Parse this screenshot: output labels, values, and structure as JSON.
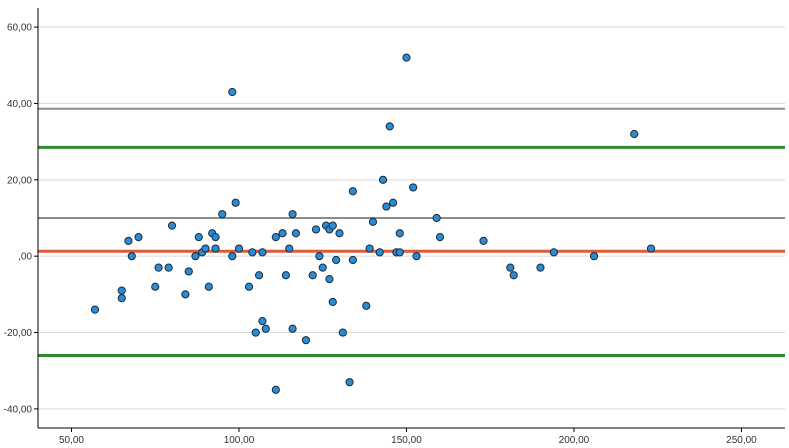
{
  "chart_data": {
    "type": "scatter",
    "title": "",
    "xlabel": "",
    "ylabel": "",
    "xlim": [
      40,
      263
    ],
    "ylim": [
      -45,
      65
    ],
    "grid": true,
    "x_ticks": [
      {
        "value": 50,
        "label": "50,00"
      },
      {
        "value": 100,
        "label": "100,00"
      },
      {
        "value": 150,
        "label": "150,00"
      },
      {
        "value": 200,
        "label": "200,00"
      },
      {
        "value": 250,
        "label": "250,00"
      }
    ],
    "y_ticks": [
      {
        "value": -40,
        "label": "-40,00"
      },
      {
        "value": -20,
        "label": "-20,00"
      },
      {
        "value": 0,
        "label": ",00"
      },
      {
        "value": 20,
        "label": "20,00"
      },
      {
        "value": 40,
        "label": "40,00"
      },
      {
        "value": 60,
        "label": "60,00"
      }
    ],
    "reference_lines": [
      {
        "y": 38.6,
        "color": "#8c8c8c",
        "width": 2
      },
      {
        "y": 28.5,
        "color": "#2e8b2e",
        "width": 3
      },
      {
        "y": 10.0,
        "color": "#8c8c8c",
        "width": 2
      },
      {
        "y": 1.3,
        "color": "#e05a3a",
        "width": 3
      },
      {
        "y": -26.0,
        "color": "#2e8b2e",
        "width": 3
      }
    ],
    "point_style": {
      "fill": "#2b8cd6",
      "stroke": "#1a2a3a"
    },
    "points": [
      [
        57,
        -14
      ],
      [
        65,
        -9
      ],
      [
        65,
        -11
      ],
      [
        67,
        4
      ],
      [
        68,
        0
      ],
      [
        70,
        5
      ],
      [
        75,
        -8
      ],
      [
        76,
        -3
      ],
      [
        79,
        -3
      ],
      [
        80,
        8
      ],
      [
        84,
        -10
      ],
      [
        85,
        -4
      ],
      [
        87,
        0
      ],
      [
        88,
        5
      ],
      [
        89,
        1
      ],
      [
        90,
        2
      ],
      [
        91,
        -8
      ],
      [
        92,
        6
      ],
      [
        93,
        2
      ],
      [
        93,
        5
      ],
      [
        95,
        11
      ],
      [
        98,
        43
      ],
      [
        98,
        0
      ],
      [
        99,
        14
      ],
      [
        100,
        2
      ],
      [
        103,
        -8
      ],
      [
        104,
        1
      ],
      [
        105,
        -20
      ],
      [
        106,
        -5
      ],
      [
        107,
        1
      ],
      [
        107,
        -17
      ],
      [
        108,
        -19
      ],
      [
        111,
        -35
      ],
      [
        111,
        5
      ],
      [
        113,
        6
      ],
      [
        114,
        -5
      ],
      [
        115,
        2
      ],
      [
        116,
        11
      ],
      [
        116,
        -19
      ],
      [
        117,
        6
      ],
      [
        120,
        -22
      ],
      [
        122,
        -5
      ],
      [
        123,
        7
      ],
      [
        124,
        0
      ],
      [
        125,
        -3
      ],
      [
        126,
        8
      ],
      [
        127,
        -6
      ],
      [
        127,
        7
      ],
      [
        128,
        8
      ],
      [
        128,
        -12
      ],
      [
        129,
        -1
      ],
      [
        130,
        6
      ],
      [
        131,
        -20
      ],
      [
        133,
        -33
      ],
      [
        134,
        17
      ],
      [
        134,
        -1
      ],
      [
        138,
        -13
      ],
      [
        139,
        2
      ],
      [
        140,
        9
      ],
      [
        142,
        1
      ],
      [
        143,
        20
      ],
      [
        144,
        13
      ],
      [
        145,
        34
      ],
      [
        146,
        14
      ],
      [
        147,
        1
      ],
      [
        148,
        1
      ],
      [
        148,
        6
      ],
      [
        150,
        52
      ],
      [
        152,
        18
      ],
      [
        153,
        0
      ],
      [
        159,
        10
      ],
      [
        160,
        5
      ],
      [
        173,
        4
      ],
      [
        181,
        -3
      ],
      [
        182,
        -5
      ],
      [
        190,
        -3
      ],
      [
        194,
        1
      ],
      [
        206,
        0
      ],
      [
        218,
        32
      ],
      [
        223,
        2
      ]
    ]
  }
}
